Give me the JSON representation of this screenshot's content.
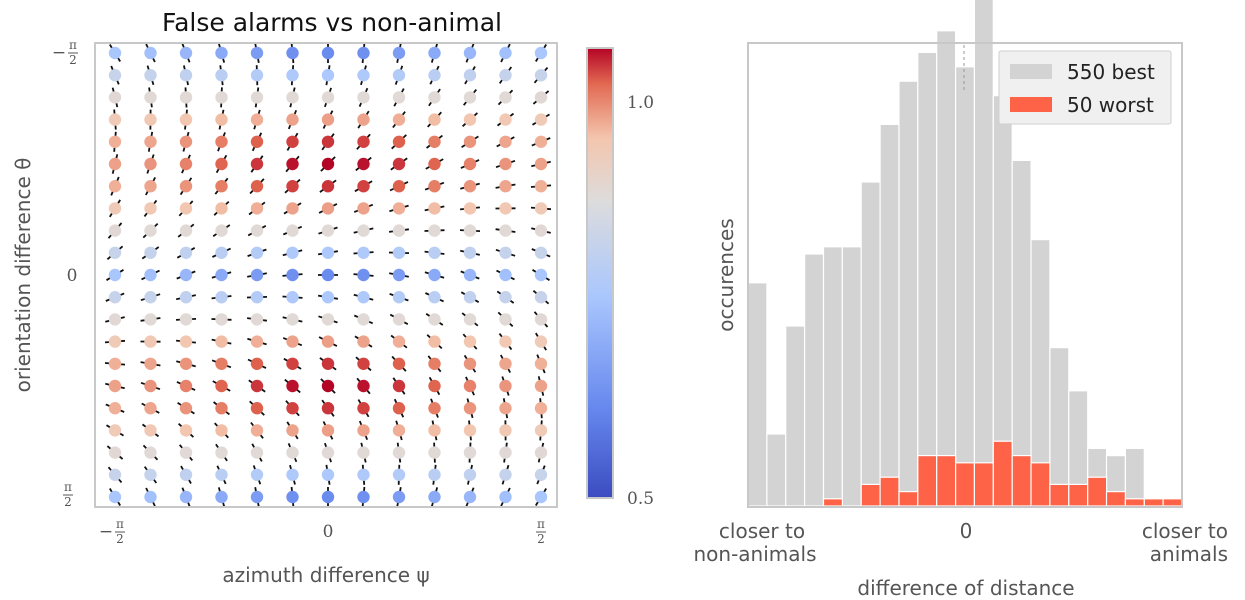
{
  "chart_data": [
    {
      "type": "scatter",
      "title": "False alarms vs non-animal",
      "xlabel": "azimuth difference ψ",
      "ylabel": "orientation difference θ",
      "xticks": [
        "−π/2",
        "0",
        "π/2"
      ],
      "yticks": [
        "−π/2",
        "0",
        "π/2"
      ],
      "xlim": [
        -1.6,
        1.6
      ],
      "ylim": [
        -1.6,
        1.6
      ],
      "colorbar": {
        "cmap": "coolwarm",
        "ticks": [
          "1.0",
          "0.5"
        ],
        "range": [
          0.5,
          1.1
        ]
      },
      "grid": false,
      "columns": 13,
      "rows": 21,
      "description": "Each grid point drawn as a colored dot with a short black oriented segment."
    },
    {
      "type": "bar",
      "subtype": "histogram",
      "xlabel": "difference of distance",
      "ylabel": "occurences",
      "xtick_labels": {
        "left": [
          "closer to",
          "non-animals"
        ],
        "center": "0",
        "right": [
          "closer to",
          "animals"
        ]
      },
      "legend_position": "top-right",
      "series": [
        {
          "name": "550 best",
          "color": "#d3d3d3",
          "values": [
            31,
            10,
            25,
            35,
            36,
            36,
            45,
            53,
            59,
            63,
            66,
            61,
            71,
            57,
            48,
            37,
            22,
            16,
            8,
            7,
            8,
            1,
            1
          ]
        },
        {
          "name": "50 worst",
          "color": "#ff6347",
          "values": [
            0,
            0,
            0,
            0,
            1,
            0,
            3,
            4,
            2,
            7,
            7,
            6,
            6,
            9,
            7,
            6,
            3,
            3,
            4,
            2,
            1,
            1,
            1
          ]
        }
      ]
    }
  ]
}
